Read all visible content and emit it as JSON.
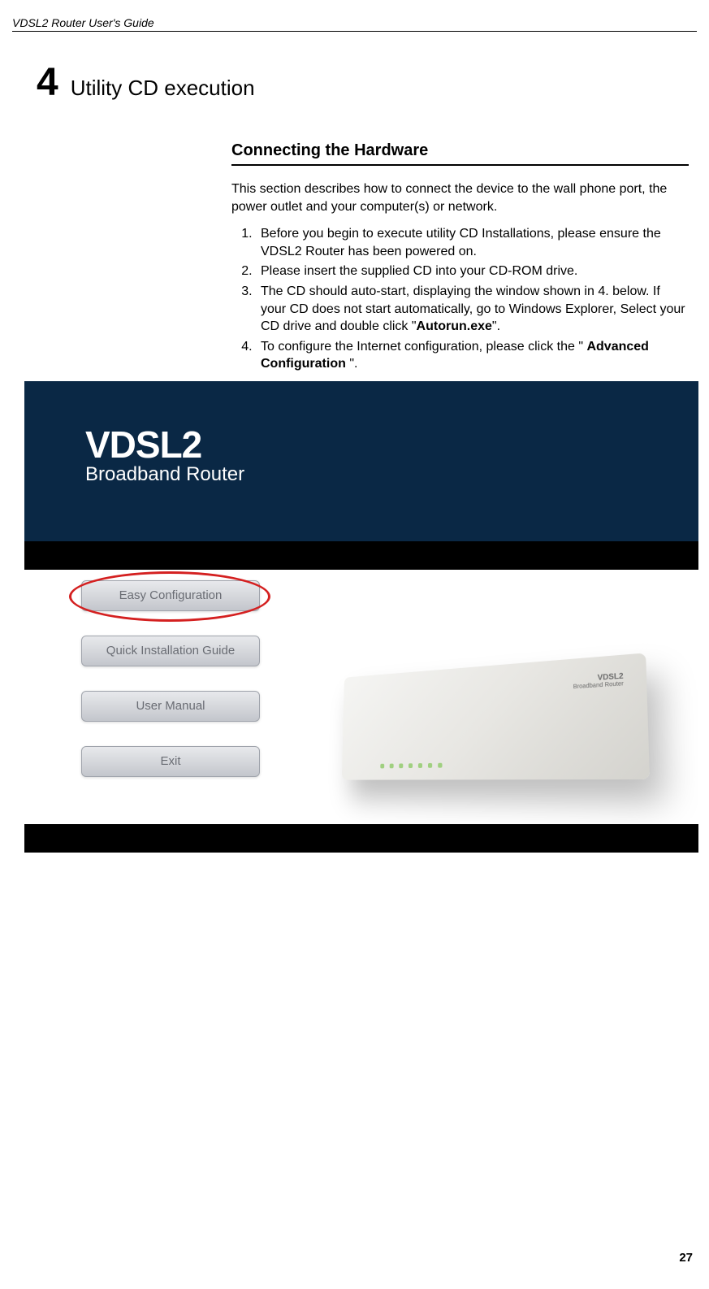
{
  "header": {
    "doc_title": "VDSL2 Router User's Guide"
  },
  "chapter": {
    "number": "4",
    "title": "Utility CD execution"
  },
  "section": {
    "heading": "Connecting the Hardware",
    "intro": "This section describes how to connect the device to the wall phone port, the power outlet and your computer(s) or network."
  },
  "steps": {
    "item1": "Before you begin to execute utility CD Installations, please ensure the VDSL2 Router has been powered on.",
    "item2": "Please insert the supplied CD into your CD-ROM drive.",
    "item3_a": "The CD should auto-start, displaying the window shown in 4. below. If your CD does not start automatically, go to Windows Explorer, Select your CD drive and double click \"",
    "item3_bold": "Autorun.exe",
    "item3_b": "\".",
    "item4_a": "To configure the Internet configuration, please click the \" ",
    "item4_bold": "Advanced Configuration",
    "item4_b": " \"."
  },
  "screenshot": {
    "logo_main": "VDSL2",
    "logo_sub": "Broadband Router",
    "buttons": {
      "btn1": "Easy Configuration",
      "btn2": "Quick Installation Guide",
      "btn3": "User Manual",
      "btn4": "Exit"
    },
    "router_logo_main": "VDSL2",
    "router_logo_sub": "Broadband Router",
    "colors": {
      "header_bg_top": "#0a2845",
      "button_grad_top": "#e8e9ec",
      "button_grad_bottom": "#c3c6cc",
      "button_text": "#6a6d74",
      "highlight_ring": "#d42020",
      "router_body_light": "#f5f5f3",
      "router_body_dark": "#d4d3ce"
    }
  },
  "page_number": "27"
}
